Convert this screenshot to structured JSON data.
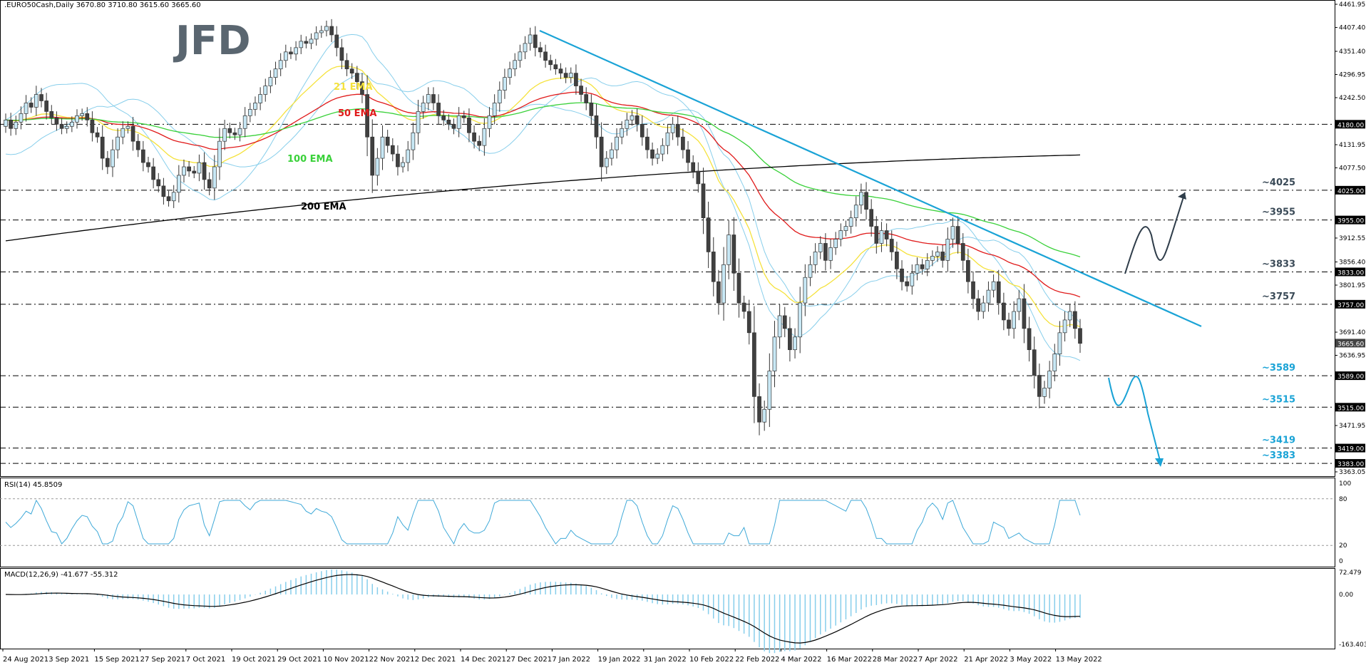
{
  "header": {
    "symbol": ".EURO50Cash,Daily",
    "ohlc": "3670.80 3710.80 3615.60 3665.60"
  },
  "brand": {
    "logo_text": "JFD"
  },
  "colors": {
    "bull_candle": "#c8e8f5",
    "bear_candle": "#404040",
    "ema21": "#f5e23c",
    "ema50": "#e01a1a",
    "ema100": "#3ad13a",
    "ema200": "#000000",
    "bollinger": "#87ceeb",
    "trendline": "#1aa3d6",
    "level_label": "#1aa3d6",
    "arrow_up": "#2f3d4a",
    "arrow_down": "#1aa3d6",
    "rsi_line": "#3fa9d8",
    "macd_hist": "#87ceeb",
    "macd_signal": "#000000",
    "grid_dash": "#000000"
  },
  "chart_data": {
    "type": "candlestick",
    "ylim": [
      3363.05,
      4461.95
    ],
    "y_tick_labels": [
      "4461.95",
      "4407.40",
      "4351.40",
      "4296.95",
      "4242.50",
      "4131.95",
      "4077.50",
      "3912.55",
      "3856.40",
      "3801.95",
      "3691.40",
      "3636.95",
      "3471.95",
      "3363.05"
    ],
    "x_tick_labels": [
      "24 Aug 2021",
      "3 Sep 2021",
      "15 Sep 2021",
      "27 Sep 2021",
      "7 Oct 2021",
      "19 Oct 2021",
      "29 Oct 2021",
      "10 Nov 2021",
      "22 Nov 2021",
      "2 Dec 2021",
      "14 Dec 2021",
      "27 Dec 2021",
      "7 Jan 2022",
      "19 Jan 2022",
      "31 Jan 2022",
      "10 Feb 2022",
      "22 Feb 2022",
      "4 Mar 2022",
      "16 Mar 2022",
      "28 Mar 2022",
      "7 Apr 2022",
      "21 Apr 2022",
      "3 May 2022",
      "13 May 2022"
    ],
    "ema_labels": [
      "21 EMA",
      "50 EMA",
      "100 EMA",
      "200 EMA"
    ],
    "close": [
      4190,
      4170,
      4185,
      4205,
      4230,
      4220,
      4250,
      4235,
      4210,
      4195,
      4180,
      4170,
      4175,
      4185,
      4200,
      4205,
      4190,
      4160,
      4150,
      4100,
      4080,
      4120,
      4150,
      4170,
      4175,
      4140,
      4120,
      4090,
      4080,
      4050,
      4035,
      4010,
      4000,
      4020,
      4060,
      4080,
      4070,
      4065,
      4090,
      4050,
      4030,
      4080,
      4140,
      4170,
      4160,
      4155,
      4170,
      4200,
      4215,
      4230,
      4250,
      4270,
      4290,
      4310,
      4330,
      4350,
      4345,
      4360,
      4375,
      4370,
      4380,
      4395,
      4400,
      4410,
      4390,
      4360,
      4330,
      4310,
      4300,
      4280,
      4250,
      4150,
      4060,
      4100,
      4150,
      4130,
      4110,
      4080,
      4090,
      4120,
      4160,
      4210,
      4230,
      4250,
      4230,
      4200,
      4190,
      4180,
      4170,
      4200,
      4195,
      4160,
      4140,
      4130,
      4170,
      4200,
      4230,
      4260,
      4290,
      4310,
      4330,
      4350,
      4370,
      4390,
      4360,
      4350,
      4330,
      4320,
      4310,
      4300,
      4290,
      4300,
      4270,
      4250,
      4230,
      4200,
      4150,
      4080,
      4100,
      4120,
      4150,
      4170,
      4190,
      4200,
      4180,
      4150,
      4120,
      4100,
      4110,
      4130,
      4160,
      4180,
      4150,
      4120,
      4090,
      4070,
      4040,
      3960,
      3880,
      3810,
      3760,
      3850,
      3920,
      3830,
      3760,
      3740,
      3690,
      3540,
      3480,
      3510,
      3600,
      3680,
      3730,
      3700,
      3650,
      3680,
      3760,
      3820,
      3850,
      3880,
      3900,
      3860,
      3890,
      3910,
      3930,
      3940,
      3960,
      3990,
      4020,
      3980,
      3940,
      3900,
      3930,
      3910,
      3880,
      3840,
      3810,
      3800,
      3830,
      3850,
      3840,
      3860,
      3870,
      3880,
      3860,
      3910,
      3940,
      3900,
      3860,
      3810,
      3770,
      3740,
      3760,
      3790,
      3810,
      3760,
      3720,
      3700,
      3740,
      3770,
      3700,
      3650,
      3590,
      3540,
      3560,
      3600,
      3640,
      3690,
      3720,
      3740,
      3700,
      3665
    ],
    "levels": [
      {
        "value": 4180.0,
        "label": "4180.00",
        "text": ""
      },
      {
        "value": 4025.0,
        "label": "4025.00",
        "text": "~4025"
      },
      {
        "value": 3955.0,
        "label": "3955.00",
        "text": "~3955"
      },
      {
        "value": 3833.0,
        "label": "3833.00",
        "text": "~3833"
      },
      {
        "value": 3757.0,
        "label": "3757.00",
        "text": "~3757"
      },
      {
        "value": 3589.0,
        "label": "3589.00",
        "text": "~3589"
      },
      {
        "value": 3515.0,
        "label": "3515.00",
        "text": "~3515"
      },
      {
        "value": 3419.0,
        "label": "3419.00",
        "text": "~3419"
      },
      {
        "value": 3383.0,
        "label": "3383.00",
        "text": "~3383"
      }
    ],
    "current_price": {
      "value": 3665.6,
      "label": "3665.60"
    },
    "grid": false,
    "rsi": {
      "label": "RSI(14) 45.8509",
      "ylim": [
        0,
        100
      ],
      "tick_labels": [
        "100",
        "80",
        "20",
        "0"
      ],
      "levels": [
        80,
        20
      ]
    },
    "macd": {
      "label": "MACD(12,26,9) -41.677 -55.312",
      "ylim": [
        -163.403,
        72.479
      ],
      "tick_labels": [
        "72.479",
        "0.00",
        "-163.403"
      ]
    }
  }
}
